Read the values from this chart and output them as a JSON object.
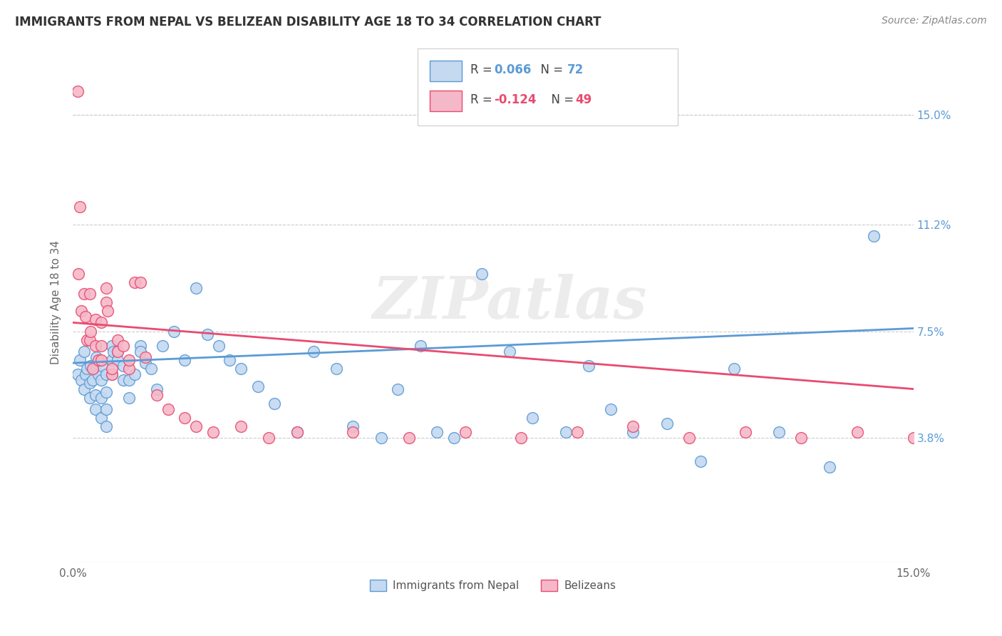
{
  "title": "IMMIGRANTS FROM NEPAL VS BELIZEAN DISABILITY AGE 18 TO 34 CORRELATION CHART",
  "source": "Source: ZipAtlas.com",
  "ylabel": "Disability Age 18 to 34",
  "ytick_labels": [
    "15.0%",
    "11.2%",
    "7.5%",
    "3.8%"
  ],
  "ytick_values": [
    0.15,
    0.112,
    0.075,
    0.038
  ],
  "xlim": [
    0.0,
    0.15
  ],
  "ylim": [
    -0.005,
    0.175
  ],
  "color_nepal": "#c5d9f0",
  "color_belize": "#f5b8c8",
  "color_line_nepal": "#5b9bd5",
  "color_line_belize": "#e84b6f",
  "watermark": "ZIPatlas",
  "nepal_x": [
    0.0008,
    0.0012,
    0.0015,
    0.002,
    0.002,
    0.0022,
    0.0025,
    0.003,
    0.003,
    0.0032,
    0.0035,
    0.004,
    0.004,
    0.004,
    0.0042,
    0.0045,
    0.005,
    0.005,
    0.005,
    0.0052,
    0.006,
    0.006,
    0.006,
    0.006,
    0.007,
    0.007,
    0.007,
    0.0072,
    0.008,
    0.008,
    0.009,
    0.009,
    0.01,
    0.01,
    0.011,
    0.012,
    0.012,
    0.013,
    0.014,
    0.015,
    0.016,
    0.018,
    0.02,
    0.022,
    0.024,
    0.026,
    0.028,
    0.03,
    0.033,
    0.036,
    0.04,
    0.043,
    0.047,
    0.05,
    0.055,
    0.058,
    0.062,
    0.065,
    0.068,
    0.073,
    0.078,
    0.082,
    0.088,
    0.092,
    0.096,
    0.1,
    0.106,
    0.112,
    0.118,
    0.126,
    0.135,
    0.143
  ],
  "nepal_y": [
    0.06,
    0.065,
    0.058,
    0.068,
    0.055,
    0.06,
    0.062,
    0.052,
    0.057,
    0.063,
    0.058,
    0.048,
    0.053,
    0.062,
    0.066,
    0.06,
    0.045,
    0.052,
    0.058,
    0.063,
    0.042,
    0.048,
    0.054,
    0.06,
    0.06,
    0.065,
    0.07,
    0.068,
    0.068,
    0.065,
    0.058,
    0.063,
    0.058,
    0.052,
    0.06,
    0.07,
    0.068,
    0.064,
    0.062,
    0.055,
    0.07,
    0.075,
    0.065,
    0.09,
    0.074,
    0.07,
    0.065,
    0.062,
    0.056,
    0.05,
    0.04,
    0.068,
    0.062,
    0.042,
    0.038,
    0.055,
    0.07,
    0.04,
    0.038,
    0.095,
    0.068,
    0.045,
    0.04,
    0.063,
    0.048,
    0.04,
    0.043,
    0.03,
    0.062,
    0.04,
    0.028,
    0.108
  ],
  "belize_x": [
    0.0008,
    0.001,
    0.0012,
    0.0015,
    0.002,
    0.0022,
    0.0025,
    0.003,
    0.003,
    0.0032,
    0.0035,
    0.004,
    0.004,
    0.0045,
    0.005,
    0.005,
    0.005,
    0.006,
    0.006,
    0.0062,
    0.007,
    0.007,
    0.008,
    0.008,
    0.009,
    0.01,
    0.01,
    0.011,
    0.012,
    0.013,
    0.015,
    0.017,
    0.02,
    0.022,
    0.025,
    0.03,
    0.035,
    0.04,
    0.05,
    0.06,
    0.07,
    0.08,
    0.09,
    0.1,
    0.11,
    0.12,
    0.13,
    0.14,
    0.15
  ],
  "belize_y": [
    0.158,
    0.095,
    0.118,
    0.082,
    0.088,
    0.08,
    0.072,
    0.088,
    0.072,
    0.075,
    0.062,
    0.079,
    0.07,
    0.065,
    0.078,
    0.07,
    0.065,
    0.09,
    0.085,
    0.082,
    0.06,
    0.062,
    0.068,
    0.072,
    0.07,
    0.062,
    0.065,
    0.092,
    0.092,
    0.066,
    0.053,
    0.048,
    0.045,
    0.042,
    0.04,
    0.042,
    0.038,
    0.04,
    0.04,
    0.038,
    0.04,
    0.038,
    0.04,
    0.042,
    0.038,
    0.04,
    0.038,
    0.04,
    0.038
  ]
}
